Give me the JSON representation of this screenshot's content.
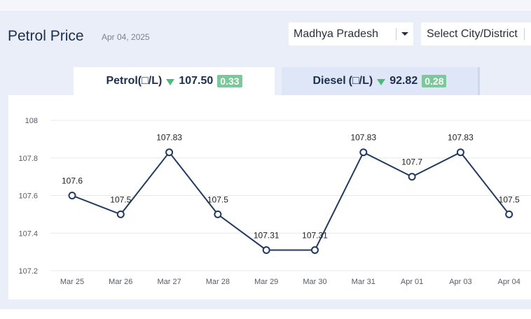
{
  "header": {
    "title": "Petrol Price",
    "date": "Apr 04, 2025"
  },
  "filters": {
    "state_value": "Madhya Pradesh",
    "city_placeholder": "Select City/District"
  },
  "tabs": [
    {
      "fuel": "Petrol",
      "unit_label": "(□/L)",
      "price": "107.50",
      "change": "0.33",
      "direction": "down"
    },
    {
      "fuel": "Diesel",
      "unit_label": "(□/L)",
      "price": "92.82",
      "change": "0.28",
      "direction": "down"
    }
  ],
  "colors": {
    "line": "#213a5f",
    "down_arrow": "#4dbb77",
    "badge": "#7cc89a",
    "active_tab": "#ffffff",
    "inactive_tab": "#dfe6f7"
  },
  "chart_data": {
    "type": "line",
    "categories": [
      "Mar 25",
      "Mar 26",
      "Mar 27",
      "Mar 28",
      "Mar 29",
      "Mar 30",
      "Mar 31",
      "Apr 01",
      "Apr 03",
      "Apr 04"
    ],
    "values": [
      107.6,
      107.5,
      107.83,
      107.5,
      107.31,
      107.31,
      107.83,
      107.7,
      107.83,
      107.5
    ],
    "data_labels": [
      "107.6",
      "107.5",
      "107.83",
      "107.5",
      "107.31",
      "107.31",
      "107.83",
      "107.7",
      "107.83",
      "107.5"
    ],
    "yticks": [
      "108",
      "107.8",
      "107.6",
      "107.4",
      "107.2"
    ],
    "ylim": [
      107.2,
      108
    ],
    "grid": "horizontal",
    "title": "",
    "xlabel": "",
    "ylabel": ""
  }
}
